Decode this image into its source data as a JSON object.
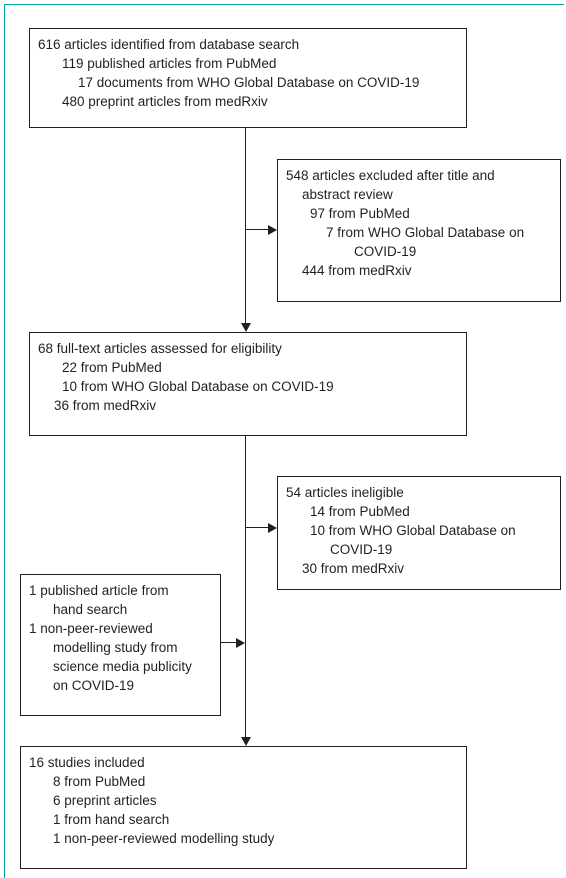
{
  "identified": {
    "title": "616 articles identified from database search",
    "items": [
      "119 published articles from PubMed",
      "17 documents from WHO Global Database on COVID-19",
      "480 preprint articles from medRxiv"
    ]
  },
  "excluded": {
    "title_lines": [
      "548 articles excluded after title and",
      "abstract review"
    ],
    "items": [
      "97 from PubMed",
      "7 from WHO Global Database on",
      "COVID-19",
      "444 from medRxiv"
    ]
  },
  "eligibility": {
    "title": "68 full-text articles assessed for eligibility",
    "items": [
      "22 from PubMed",
      "10 from WHO Global Database on COVID-19",
      "36 from medRxiv"
    ]
  },
  "ineligible": {
    "title": "54 articles ineligible",
    "items": [
      "14 from PubMed",
      "10 from WHO Global Database on",
      "COVID-19",
      "30 from medRxiv"
    ]
  },
  "hand_search": {
    "lines": [
      "1 published article from",
      "hand search",
      "1 non-peer-reviewed",
      "modelling study from",
      "science media publicity",
      "on COVID-19"
    ]
  },
  "included": {
    "title": "16 studies included",
    "items": [
      "8 from PubMed",
      "6 preprint articles",
      "1 from hand search",
      "1 non-peer-reviewed modelling study"
    ]
  },
  "colors": {
    "frame_accent": "#00a19a",
    "ink": "#231f20"
  }
}
